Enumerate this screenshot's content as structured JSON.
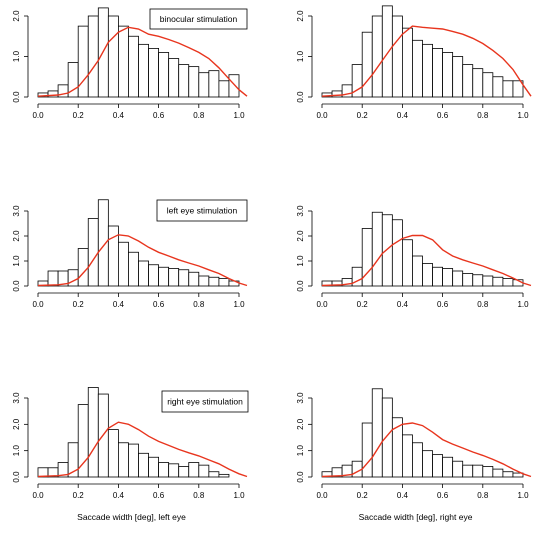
{
  "chart_data": [
    {
      "type": "bar",
      "legend": "binocular stimulation",
      "xlabel": "",
      "x_ticks": [
        "0.0",
        "0.2",
        "0.4",
        "0.6",
        "0.8",
        "1.0"
      ],
      "y_ticks": [
        "0.0",
        "1.0",
        "2.0"
      ],
      "bin_edges": [
        0,
        0.05,
        0.1,
        0.15,
        0.2,
        0.25,
        0.3,
        0.35,
        0.4,
        0.45,
        0.5,
        0.55,
        0.6,
        0.65,
        0.7,
        0.75,
        0.8,
        0.85,
        0.9,
        0.95,
        1.0
      ],
      "values": [
        0.1,
        0.15,
        0.3,
        0.85,
        1.75,
        2.0,
        2.2,
        2.0,
        1.75,
        1.5,
        1.3,
        1.2,
        1.1,
        0.95,
        0.8,
        0.75,
        0.6,
        0.65,
        0.4,
        0.55
      ],
      "curve_x": [
        0,
        0.1,
        0.15,
        0.2,
        0.25,
        0.3,
        0.35,
        0.4,
        0.45,
        0.5,
        0.55,
        0.6,
        0.65,
        0.7,
        0.75,
        0.8,
        0.85,
        0.9,
        0.95,
        1.0,
        1.04
      ],
      "curve_y": [
        0.02,
        0.05,
        0.1,
        0.25,
        0.55,
        0.9,
        1.35,
        1.6,
        1.72,
        1.68,
        1.55,
        1.5,
        1.42,
        1.33,
        1.22,
        1.1,
        0.95,
        0.72,
        0.45,
        0.18,
        0.02
      ]
    },
    {
      "type": "bar",
      "legend": "",
      "xlabel": "",
      "x_ticks": [
        "0.0",
        "0.2",
        "0.4",
        "0.6",
        "0.8",
        "1.0"
      ],
      "y_ticks": [
        "0.0",
        "1.0",
        "2.0"
      ],
      "bin_edges": [
        0,
        0.05,
        0.1,
        0.15,
        0.2,
        0.25,
        0.3,
        0.35,
        0.4,
        0.45,
        0.5,
        0.55,
        0.6,
        0.65,
        0.7,
        0.75,
        0.8,
        0.85,
        0.9,
        0.95,
        1.0
      ],
      "values": [
        0.1,
        0.15,
        0.3,
        0.8,
        1.6,
        2.0,
        2.25,
        2.0,
        1.7,
        1.4,
        1.3,
        1.2,
        1.1,
        1.0,
        0.8,
        0.7,
        0.6,
        0.5,
        0.4,
        0.4
      ],
      "curve_x": [
        0,
        0.1,
        0.15,
        0.2,
        0.25,
        0.3,
        0.35,
        0.4,
        0.45,
        0.5,
        0.55,
        0.6,
        0.65,
        0.7,
        0.75,
        0.8,
        0.85,
        0.9,
        0.95,
        1.0,
        1.04
      ],
      "curve_y": [
        0.02,
        0.05,
        0.1,
        0.25,
        0.55,
        0.9,
        1.25,
        1.55,
        1.75,
        1.72,
        1.7,
        1.68,
        1.62,
        1.55,
        1.45,
        1.32,
        1.15,
        0.95,
        0.68,
        0.3,
        0.02
      ]
    },
    {
      "type": "bar",
      "legend": "left eye stimulation",
      "xlabel": "",
      "x_ticks": [
        "0.0",
        "0.2",
        "0.4",
        "0.6",
        "0.8",
        "1.0"
      ],
      "y_ticks": [
        "0.0",
        "1.0",
        "2.0",
        "3.0"
      ],
      "bin_edges": [
        0,
        0.05,
        0.1,
        0.15,
        0.2,
        0.25,
        0.3,
        0.35,
        0.4,
        0.45,
        0.5,
        0.55,
        0.6,
        0.65,
        0.7,
        0.75,
        0.8,
        0.85,
        0.9,
        0.95,
        1.0
      ],
      "values": [
        0.2,
        0.6,
        0.6,
        0.65,
        1.5,
        2.7,
        3.45,
        2.4,
        1.75,
        1.35,
        1.0,
        0.85,
        0.75,
        0.7,
        0.65,
        0.55,
        0.4,
        0.35,
        0.3,
        0.2
      ],
      "curve_x": [
        0,
        0.1,
        0.15,
        0.2,
        0.25,
        0.3,
        0.35,
        0.4,
        0.45,
        0.5,
        0.55,
        0.6,
        0.65,
        0.7,
        0.75,
        0.8,
        0.85,
        0.9,
        0.95,
        1.0,
        1.04
      ],
      "curve_y": [
        0.02,
        0.05,
        0.1,
        0.3,
        0.75,
        1.35,
        1.85,
        2.05,
        2.0,
        1.8,
        1.55,
        1.35,
        1.2,
        1.05,
        0.92,
        0.8,
        0.65,
        0.5,
        0.3,
        0.12,
        0.02
      ]
    },
    {
      "type": "bar",
      "legend": "",
      "xlabel": "",
      "x_ticks": [
        "0.0",
        "0.2",
        "0.4",
        "0.6",
        "0.8",
        "1.0"
      ],
      "y_ticks": [
        "0.0",
        "1.0",
        "2.0",
        "3.0"
      ],
      "bin_edges": [
        0,
        0.05,
        0.1,
        0.15,
        0.2,
        0.25,
        0.3,
        0.35,
        0.4,
        0.45,
        0.5,
        0.55,
        0.6,
        0.65,
        0.7,
        0.75,
        0.8,
        0.85,
        0.9,
        0.95,
        1.0
      ],
      "values": [
        0.2,
        0.2,
        0.3,
        0.75,
        2.3,
        2.95,
        2.85,
        2.65,
        1.85,
        1.2,
        0.9,
        0.75,
        0.7,
        0.6,
        0.5,
        0.45,
        0.4,
        0.35,
        0.3,
        0.25
      ],
      "curve_x": [
        0,
        0.1,
        0.15,
        0.2,
        0.25,
        0.3,
        0.35,
        0.4,
        0.45,
        0.5,
        0.55,
        0.6,
        0.65,
        0.7,
        0.75,
        0.8,
        0.85,
        0.9,
        0.95,
        1.0,
        1.04
      ],
      "curve_y": [
        0.02,
        0.05,
        0.1,
        0.3,
        0.75,
        1.3,
        1.65,
        1.9,
        2.02,
        2.02,
        1.85,
        1.45,
        1.2,
        1.05,
        0.92,
        0.8,
        0.65,
        0.5,
        0.32,
        0.12,
        0.02
      ]
    },
    {
      "type": "bar",
      "legend": "right eye stimulation",
      "xlabel": "Saccade width [deg], left eye",
      "x_ticks": [
        "0.0",
        "0.2",
        "0.4",
        "0.6",
        "0.8",
        "1.0"
      ],
      "y_ticks": [
        "0.0",
        "1.0",
        "2.0",
        "3.0"
      ],
      "bin_edges": [
        0,
        0.05,
        0.1,
        0.15,
        0.2,
        0.25,
        0.3,
        0.35,
        0.4,
        0.45,
        0.5,
        0.55,
        0.6,
        0.65,
        0.7,
        0.75,
        0.8,
        0.85,
        0.9,
        0.95,
        1.0
      ],
      "values": [
        0.35,
        0.35,
        0.55,
        1.3,
        2.75,
        3.4,
        3.15,
        1.8,
        1.3,
        1.25,
        0.9,
        0.75,
        0.55,
        0.5,
        0.4,
        0.55,
        0.45,
        0.2,
        0.1,
        0.0
      ],
      "curve_x": [
        0,
        0.1,
        0.15,
        0.2,
        0.25,
        0.3,
        0.35,
        0.4,
        0.45,
        0.5,
        0.55,
        0.6,
        0.65,
        0.7,
        0.75,
        0.8,
        0.85,
        0.9,
        0.95,
        1.0,
        1.04
      ],
      "curve_y": [
        0.02,
        0.05,
        0.1,
        0.3,
        0.75,
        1.35,
        1.85,
        2.08,
        2.0,
        1.8,
        1.55,
        1.35,
        1.2,
        1.05,
        0.92,
        0.8,
        0.65,
        0.5,
        0.3,
        0.12,
        0.02
      ]
    },
    {
      "type": "bar",
      "legend": "",
      "xlabel": "Saccade width [deg], right eye",
      "x_ticks": [
        "0.0",
        "0.2",
        "0.4",
        "0.6",
        "0.8",
        "1.0"
      ],
      "y_ticks": [
        "0.0",
        "1.0",
        "2.0",
        "3.0"
      ],
      "bin_edges": [
        0,
        0.05,
        0.1,
        0.15,
        0.2,
        0.25,
        0.3,
        0.35,
        0.4,
        0.45,
        0.5,
        0.55,
        0.6,
        0.65,
        0.7,
        0.75,
        0.8,
        0.85,
        0.9,
        0.95,
        1.0
      ],
      "values": [
        0.2,
        0.35,
        0.45,
        0.6,
        2.05,
        3.35,
        3.0,
        2.25,
        1.6,
        1.3,
        1.0,
        0.85,
        0.75,
        0.6,
        0.45,
        0.45,
        0.4,
        0.3,
        0.2,
        0.15
      ],
      "curve_x": [
        0,
        0.1,
        0.15,
        0.2,
        0.25,
        0.3,
        0.35,
        0.4,
        0.45,
        0.5,
        0.55,
        0.6,
        0.65,
        0.7,
        0.75,
        0.8,
        0.85,
        0.9,
        0.95,
        1.0,
        1.04
      ],
      "curve_y": [
        0.02,
        0.05,
        0.1,
        0.3,
        0.75,
        1.35,
        1.8,
        2.0,
        2.05,
        1.95,
        1.7,
        1.42,
        1.25,
        1.1,
        0.95,
        0.82,
        0.67,
        0.5,
        0.3,
        0.12,
        0.02
      ]
    }
  ],
  "colors": {
    "curve": "#e8351e",
    "bars": "#ffffff",
    "axes": "#000000"
  }
}
